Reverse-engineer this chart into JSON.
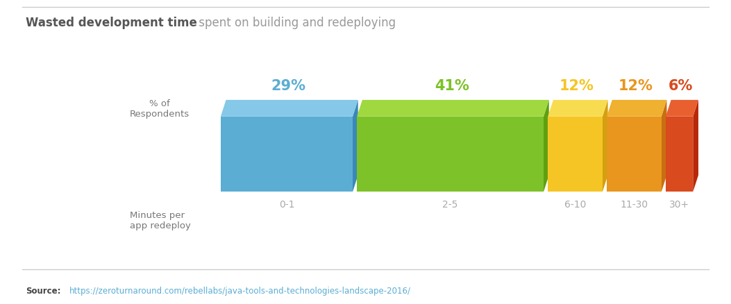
{
  "title_bold": "Wasted development time",
  "title_light": " spent on building and redeploying",
  "categories": [
    "0-1",
    "2-5",
    "6-10",
    "11-30",
    "30+"
  ],
  "values": [
    29,
    41,
    12,
    12,
    6
  ],
  "bar_colors": [
    "#5BADD4",
    "#7DC228",
    "#F5C525",
    "#E8961E",
    "#D94A1E"
  ],
  "bar_top_colors": [
    "#85C8E8",
    "#A0D840",
    "#F8DC50",
    "#F0B030",
    "#E86030"
  ],
  "bar_side_colors": [
    "#3A88B8",
    "#5EA010",
    "#D4A010",
    "#C87010",
    "#B82808"
  ],
  "value_colors": [
    "#5BADD4",
    "#7DC228",
    "#F5C525",
    "#E8961E",
    "#D94A1E"
  ],
  "value_labels": [
    "29%",
    "41%",
    "12%",
    "12%",
    "6%"
  ],
  "y_label": "% of\nRespondents",
  "x_label": "Minutes per\napp redeploy",
  "source_text": "Source:",
  "source_url": "https://zeroturnaround.com/rebellabs/java-tools-and-technologies-landscape-2016/",
  "background_color": "#FFFFFF",
  "title_bold_color": "#555555",
  "title_light_color": "#999999",
  "label_color": "#777777",
  "category_color": "#AAAAAA"
}
